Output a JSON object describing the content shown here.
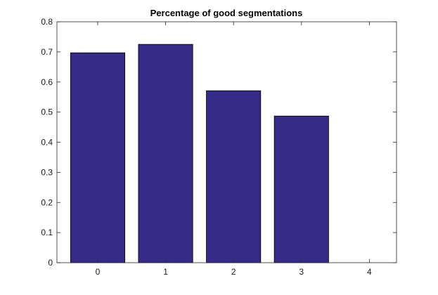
{
  "chart_data": {
    "type": "bar",
    "title": "Percentage of good segmentations",
    "xlabel": "",
    "ylabel": "",
    "categories": [
      "0",
      "1",
      "2",
      "3",
      "4"
    ],
    "values": [
      0.697,
      0.725,
      0.571,
      0.487,
      0
    ],
    "xlim": [
      -0.6,
      4.4
    ],
    "ylim": [
      0,
      0.8
    ],
    "yticks": [
      "0",
      "0.1",
      "0.2",
      "0.3",
      "0.4",
      "0.5",
      "0.6",
      "0.7",
      "0.8"
    ],
    "grid": false,
    "bar_color": "#362A87",
    "bar_edge_color": "#000000"
  }
}
